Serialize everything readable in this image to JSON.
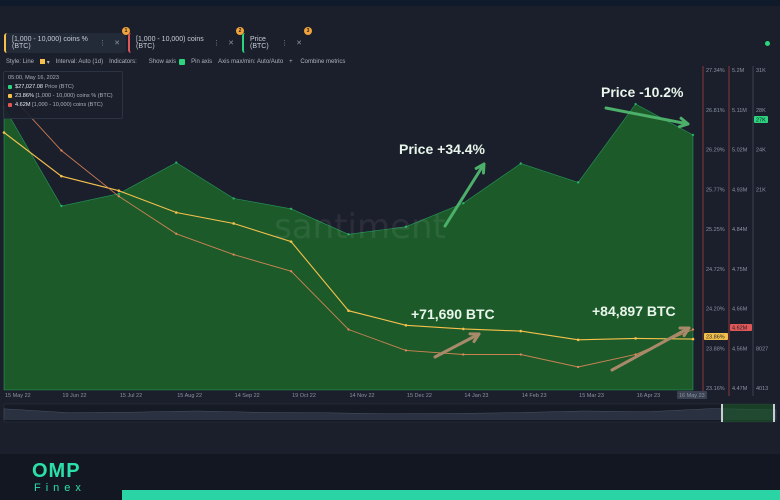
{
  "tabs": [
    {
      "label": "[1,000 - 10,000) coins % (BTC)",
      "badge": "1"
    },
    {
      "label": "[1,000 - 10,000) coins (BTC)",
      "badge": "2"
    },
    {
      "label": "Price (BTC)",
      "badge": "3"
    }
  ],
  "toolbar": {
    "style": "Style: Line",
    "interval": "Interval: Auto (1d)",
    "indicators": "Indicators:",
    "show_axis": "Show axis",
    "pin_axis": "Pin axis",
    "axis_max_min": "Axis max/min: Auto/Auto",
    "combine": "Combine metrics"
  },
  "legend": {
    "date": "05:00, May 16, 2023",
    "rows": [
      {
        "value": "$27,027.08",
        "label": "Price (BTC)",
        "color": "#2bd47d"
      },
      {
        "value": "23.86%",
        "label": "[1,000 - 10,000) coins % (BTC)",
        "color": "#f5c14b"
      },
      {
        "value": "4.62M",
        "label": "[1,000 - 10,000) coins (BTC)",
        "color": "#e05757"
      }
    ]
  },
  "annotations": {
    "price_up": "Price +34.4%",
    "price_down": "Price -10.2%",
    "btc1": "+71,690 BTC",
    "btc2": "+84,897 BTC"
  },
  "watermark": "santiment",
  "brand": {
    "logo": "OMP",
    "sub": "Finex"
  },
  "colors": {
    "price_fill": "#1d5a2a",
    "pct_line": "#f5c14b",
    "coins_line": "#e88b5a",
    "accent": "#2bd47d"
  },
  "chart_data": {
    "type": "area",
    "x": [
      "15 May 22",
      "19 Jun 22",
      "15 Jul 22",
      "15 Aug 22",
      "14 Sep 22",
      "19 Oct 22",
      "14 Nov 22",
      "15 Dec 22",
      "14 Jan 23",
      "14 Feb 23",
      "15 Mar 23",
      "16 Apr 23",
      "16 May 23"
    ],
    "series": [
      {
        "name": "Price (BTC)",
        "values": [
          30000,
          19500,
          20800,
          24100,
          20300,
          19200,
          16500,
          17300,
          19800,
          24000,
          22000,
          30300,
          27027
        ]
      },
      {
        "name": "[1,000 - 10,000) coins % (BTC)",
        "values": [
          26.7,
          26.1,
          25.9,
          25.6,
          25.45,
          25.2,
          24.25,
          24.05,
          24.0,
          23.97,
          23.85,
          23.87,
          23.86
        ]
      },
      {
        "name": "[1,000 - 10,000) coins (BTC)",
        "values": [
          5.2,
          5.05,
          4.94,
          4.85,
          4.8,
          4.76,
          4.62,
          4.57,
          4.56,
          4.56,
          4.53,
          4.56,
          4.62
        ]
      }
    ],
    "pct_axis_ticks": [
      "27.34%",
      "26.81%",
      "26.29%",
      "25.77%",
      "25.25%",
      "24.72%",
      "24.20%",
      "23.88%",
      "23.16%"
    ],
    "coins_axis_ticks": [
      "5.2M",
      "5.11M",
      "5.02M",
      "4.93M",
      "4.84M",
      "4.75M",
      "4.66M",
      "4.56M",
      "4.47M"
    ],
    "price_axis_ticks": [
      "31K",
      "28K",
      "24K",
      "21K",
      "",
      "",
      "",
      "8027",
      "4013"
    ],
    "price_marker": "27K",
    "pct_marker": "23.86%",
    "coins_marker": "4.62M",
    "xlabel_last": "16 May 23"
  }
}
